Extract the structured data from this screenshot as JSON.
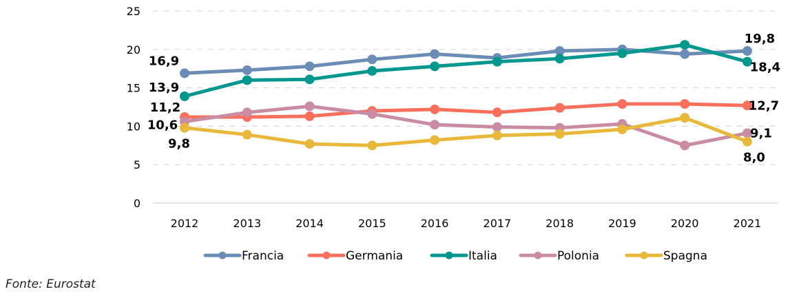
{
  "chart_data": {
    "type": "line",
    "title": "",
    "xlabel": "",
    "ylabel": "",
    "ylim": [
      0,
      25
    ],
    "yticks": [
      "0",
      "5",
      "10",
      "15",
      "20",
      "25"
    ],
    "grid": true,
    "legend_position": "bottom",
    "categories": [
      "2012",
      "2013",
      "2014",
      "2015",
      "2016",
      "2017",
      "2018",
      "2019",
      "2020",
      "2021"
    ],
    "series": [
      {
        "name": "Francia",
        "color": "#6b8cb4",
        "values": [
          16.9,
          17.3,
          17.8,
          18.7,
          19.4,
          18.9,
          19.8,
          20.0,
          19.4,
          19.8
        ],
        "labels": [
          {
            "index": 0,
            "text": "16,9"
          },
          {
            "index": 9,
            "text": "19,8"
          }
        ]
      },
      {
        "name": "Germania",
        "color": "#f8705c",
        "values": [
          11.2,
          11.2,
          11.3,
          12.0,
          12.2,
          11.8,
          12.4,
          12.9,
          12.9,
          12.7
        ],
        "labels": [
          {
            "index": 0,
            "text": "11,2"
          },
          {
            "index": 9,
            "text": "12,7"
          }
        ]
      },
      {
        "name": "Italia",
        "color": "#00978f",
        "values": [
          13.9,
          16.0,
          16.1,
          17.2,
          17.8,
          18.4,
          18.8,
          19.5,
          20.6,
          18.4
        ],
        "labels": [
          {
            "index": 0,
            "text": "13,9"
          },
          {
            "index": 9,
            "text": "18,4"
          }
        ]
      },
      {
        "name": "Polonia",
        "color": "#c98ca2",
        "values": [
          10.6,
          11.8,
          12.6,
          11.6,
          10.2,
          9.9,
          9.8,
          10.3,
          7.5,
          9.1
        ],
        "labels": [
          {
            "index": 0,
            "text": "10,6"
          },
          {
            "index": 9,
            "text": "9,1"
          }
        ]
      },
      {
        "name": "Spagna",
        "color": "#e8b83a",
        "values": [
          9.8,
          8.9,
          7.7,
          7.5,
          8.2,
          8.8,
          9.0,
          9.6,
          11.1,
          8.0
        ],
        "labels": [
          {
            "index": 0,
            "text": "9,8"
          },
          {
            "index": 9,
            "text": "8,0"
          }
        ]
      }
    ]
  },
  "source": "Fonte: Eurostat"
}
